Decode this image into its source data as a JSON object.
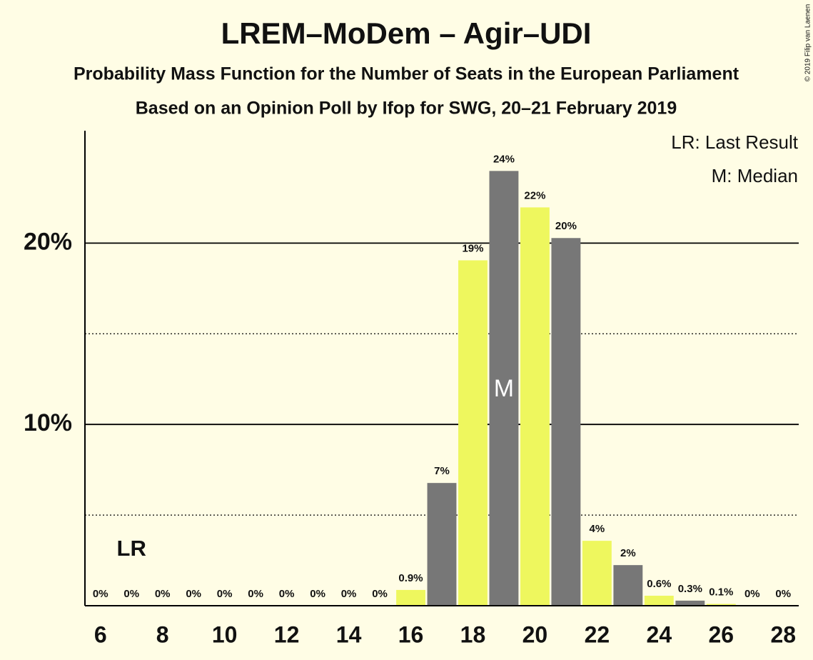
{
  "chart_data": {
    "type": "bar",
    "title": "LREM–MoDem – Agir–UDI",
    "subtitle": "Probability Mass Function for the Number of Seats in the European Parliament",
    "subtitle2": "Based on an Opinion Poll by Ifop for SWG, 20–21 February 2019",
    "copyright": "© 2019 Filip van Laenen",
    "legend": [
      "LR: Last Result",
      "M: Median"
    ],
    "x": [
      6,
      7,
      8,
      9,
      10,
      11,
      12,
      13,
      14,
      15,
      16,
      17,
      18,
      19,
      20,
      21,
      22,
      23,
      24,
      25,
      26,
      27,
      28
    ],
    "values": [
      0,
      0,
      0,
      0,
      0,
      0,
      0,
      0,
      0,
      0,
      0.87,
      6.77,
      19.05,
      23.98,
      21.97,
      20.28,
      3.58,
      2.24,
      0.55,
      0.28,
      0.1,
      0,
      0
    ],
    "value_labels": [
      "0%",
      "0%",
      "0%",
      "0%",
      "0%",
      "0%",
      "0%",
      "0%",
      "0%",
      "0%",
      "0.9%",
      "7%",
      "19%",
      "24%",
      "22%",
      "20%",
      "4%",
      "2%",
      "0.6%",
      "0.3%",
      "0.1%",
      "0%",
      "0%"
    ],
    "colors": [
      "#eef75e",
      "#777777",
      "#eef75e",
      "#777777",
      "#eef75e",
      "#777777",
      "#eef75e",
      "#777777",
      "#eef75e",
      "#777777",
      "#eef75e",
      "#777777",
      "#eef75e",
      "#777777",
      "#eef75e",
      "#777777",
      "#eef75e",
      "#777777",
      "#eef75e",
      "#777777",
      "#eef75e",
      "#777777",
      "#eef75e"
    ],
    "xlim": [
      5.5,
      28.5
    ],
    "xticks": [
      6,
      8,
      10,
      12,
      14,
      16,
      18,
      20,
      22,
      24,
      26,
      28
    ],
    "ylim": [
      0,
      26.2
    ],
    "yticks": [
      {
        "value": 10,
        "label": "10%"
      },
      {
        "value": 20,
        "label": "20%"
      }
    ],
    "minor_yticks": [
      5,
      15
    ],
    "grid": true,
    "annotations": [
      {
        "label": "LR",
        "x": 7
      },
      {
        "label": "M",
        "x": 19
      }
    ]
  }
}
